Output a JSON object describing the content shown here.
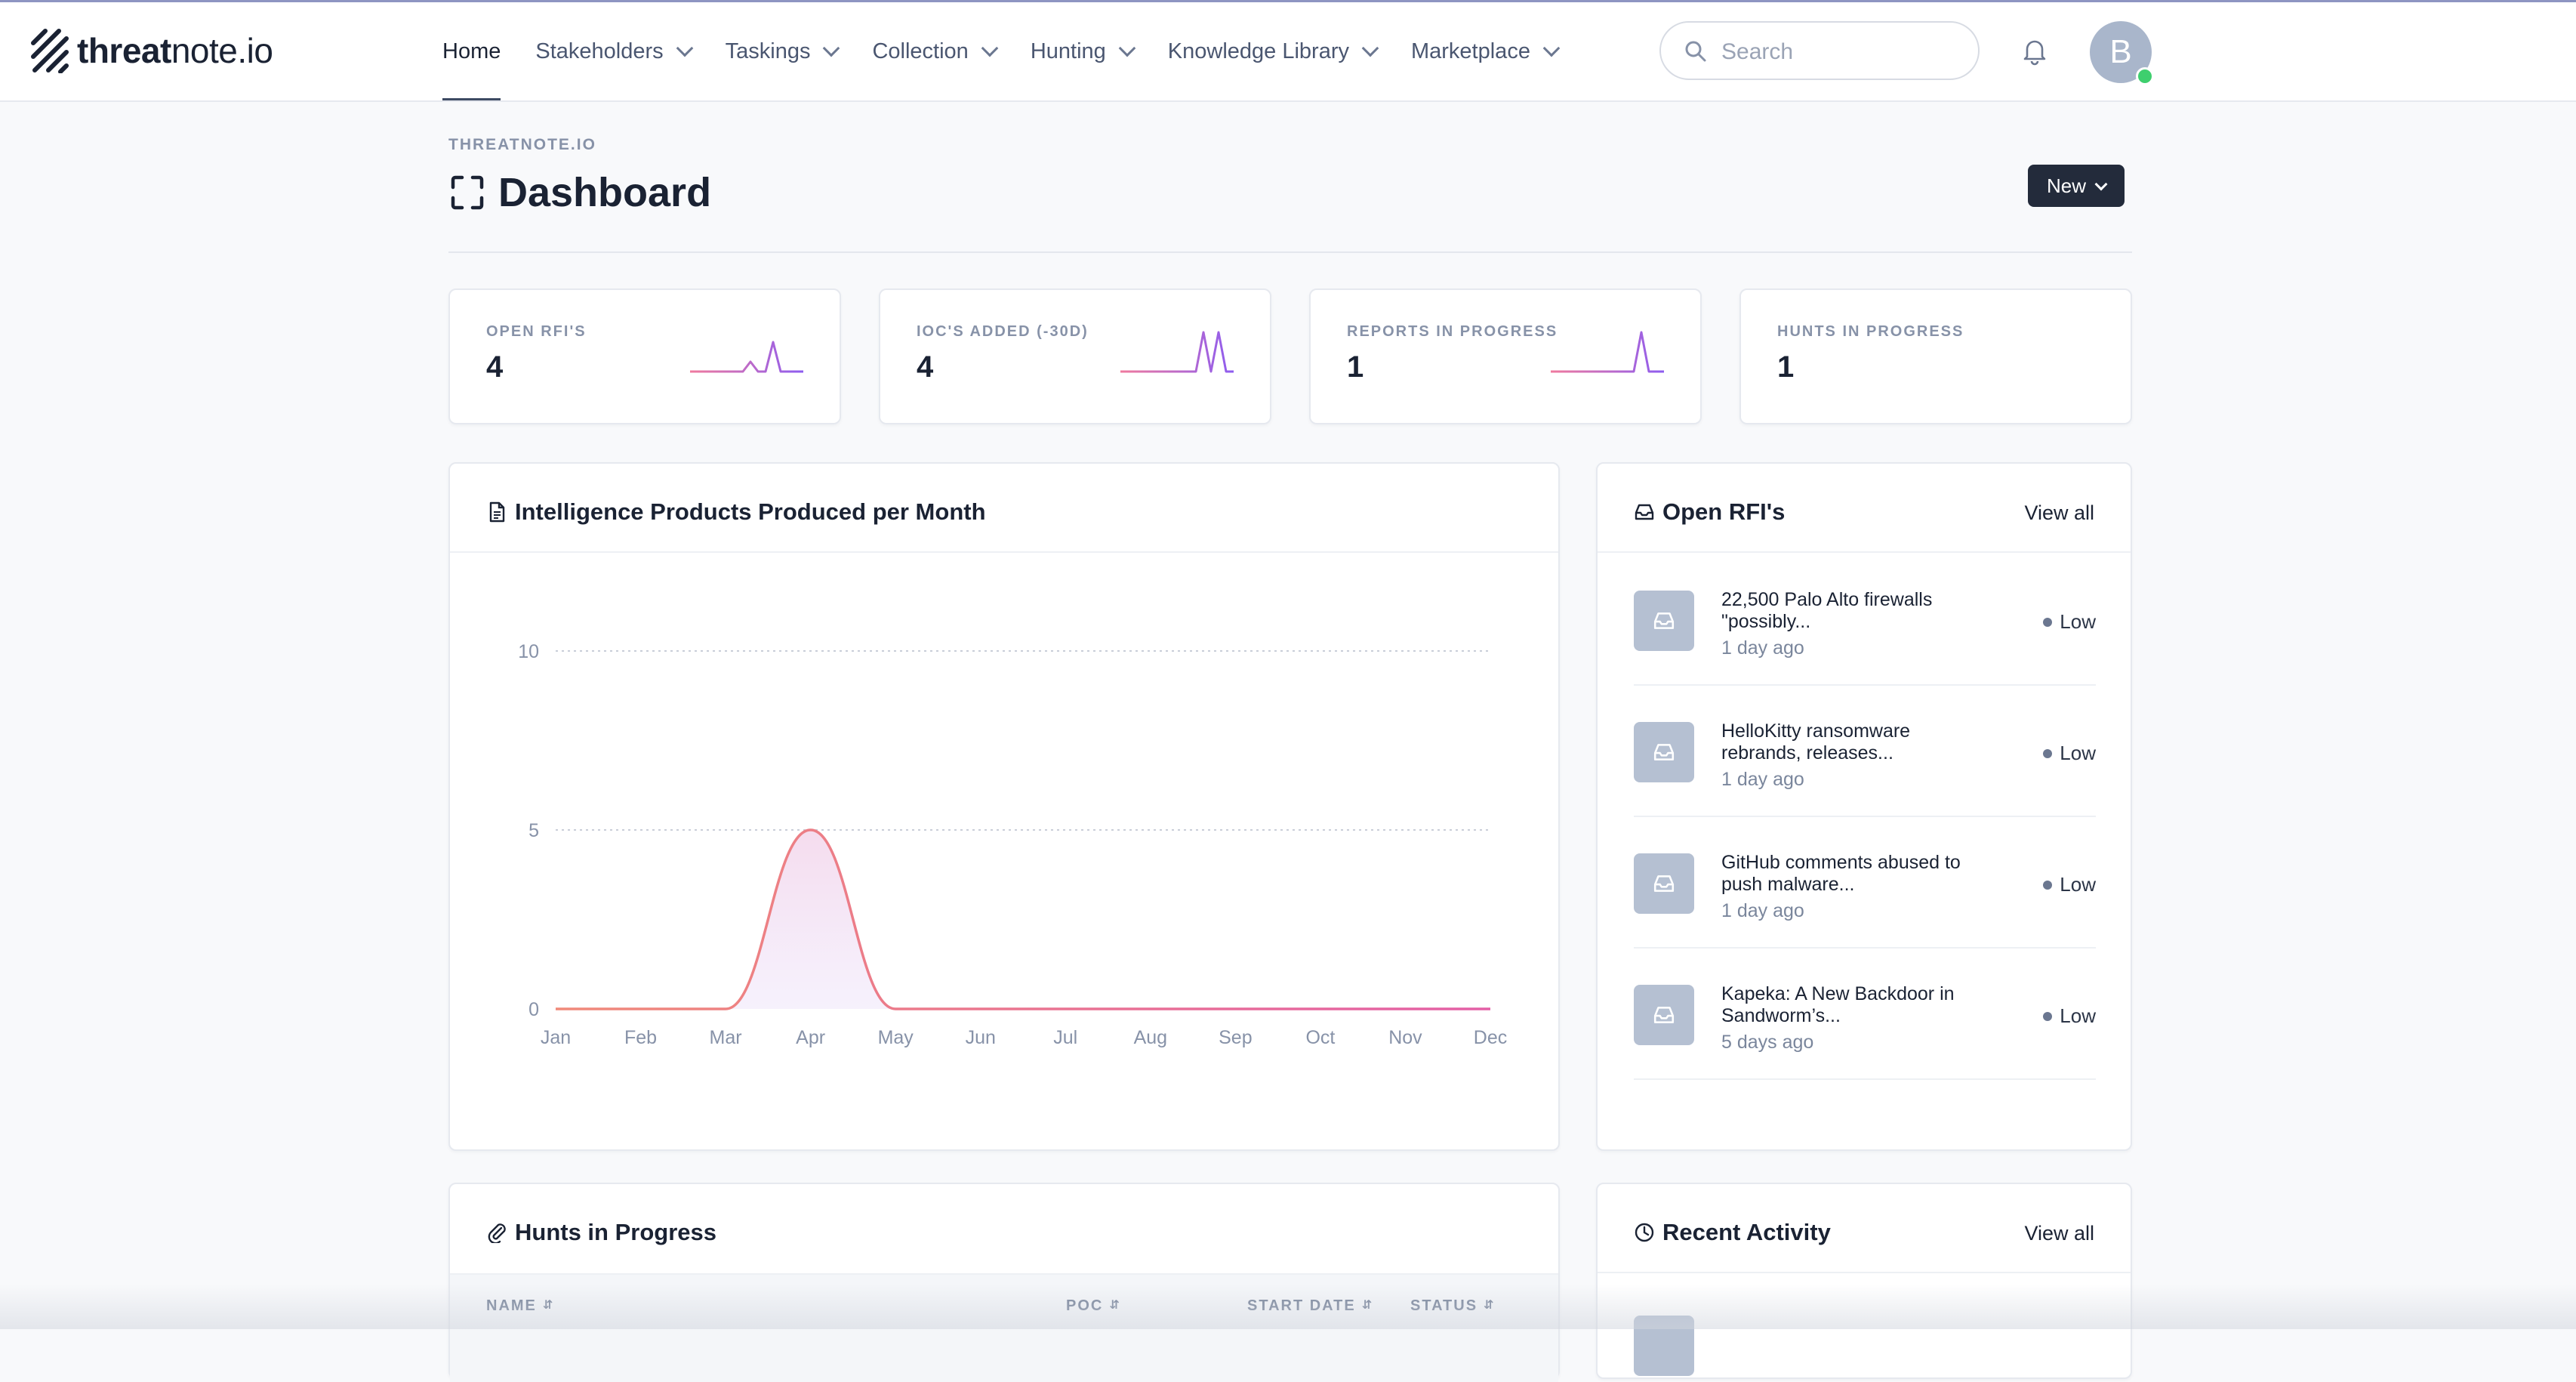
{
  "app": {
    "logo_bold": "threat",
    "logo_rest": "note.io"
  },
  "nav": {
    "items": [
      {
        "label": "Home",
        "dropdown": false,
        "active": true
      },
      {
        "label": "Stakeholders",
        "dropdown": true
      },
      {
        "label": "Taskings",
        "dropdown": true
      },
      {
        "label": "Collection",
        "dropdown": true
      },
      {
        "label": "Hunting",
        "dropdown": true
      },
      {
        "label": "Knowledge Library",
        "dropdown": true
      },
      {
        "label": "Marketplace",
        "dropdown": true
      }
    ]
  },
  "search": {
    "placeholder": "Search",
    "value": ""
  },
  "user": {
    "initial": "B",
    "status_color": "#3ecf6e"
  },
  "page": {
    "breadcrumb": "THREATNOTE.IO",
    "title": "Dashboard",
    "new_label": "New"
  },
  "stats": [
    {
      "label": "OPEN RFI'S",
      "value": "4",
      "trend": [
        0,
        0,
        0,
        0,
        0,
        0,
        0,
        0,
        1,
        0,
        0,
        3,
        0,
        0,
        0,
        0
      ]
    },
    {
      "label": "IOC'S ADDED (-30D)",
      "value": "4",
      "trend": [
        0,
        0,
        0,
        0,
        0,
        0,
        0,
        0,
        0,
        0,
        0,
        4,
        0,
        4,
        0,
        0
      ]
    },
    {
      "label": "REPORTS IN PROGRESS",
      "value": "1",
      "trend": [
        0,
        0,
        0,
        0,
        0,
        0,
        0,
        0,
        0,
        0,
        0,
        0,
        4,
        0,
        0,
        0
      ]
    },
    {
      "label": "HUNTS IN PROGRESS",
      "value": "1",
      "trend": [
        0,
        0,
        0,
        0,
        0,
        0,
        0,
        0,
        0,
        0,
        0,
        0,
        0,
        0,
        0,
        0
      ]
    }
  ],
  "colors": {
    "spark_start": "#f07a9e",
    "spark_end": "#8d5cf0",
    "chart_line": "#e46ea3",
    "accent_dark": "#232b3b"
  },
  "intel_card": {
    "title": "Intelligence Products Produced per Month"
  },
  "chart_data": {
    "type": "area",
    "title": "Intelligence Products Produced per Month",
    "categories": [
      "Jan",
      "Feb",
      "Mar",
      "Apr",
      "May",
      "Jun",
      "Jul",
      "Aug",
      "Sep",
      "Oct",
      "Nov",
      "Dec"
    ],
    "series": [
      {
        "values": [
          0,
          0,
          0,
          5,
          0,
          0,
          0,
          0,
          0,
          0,
          0,
          0
        ]
      }
    ],
    "yticks": [
      0,
      5,
      10
    ],
    "ylim": [
      0,
      10
    ],
    "grid": true
  },
  "rfi_card": {
    "title": "Open RFI's",
    "view_all": "View all",
    "items": [
      {
        "title": "22,500 Palo Alto firewalls \"possibly...",
        "time": "1 day ago",
        "level": "Low"
      },
      {
        "title": "HelloKitty ransomware rebrands, releases...",
        "time": "1 day ago",
        "level": "Low"
      },
      {
        "title": "GitHub comments abused to push malware...",
        "time": "1 day ago",
        "level": "Low"
      },
      {
        "title": "Kapeka: A New Backdoor in Sandworm’s...",
        "time": "5 days ago",
        "level": "Low"
      }
    ]
  },
  "hunts_card": {
    "title": "Hunts in Progress",
    "columns": [
      "NAME",
      "POC",
      "START DATE",
      "STATUS"
    ]
  },
  "activity_card": {
    "title": "Recent Activity",
    "view_all": "View all"
  }
}
